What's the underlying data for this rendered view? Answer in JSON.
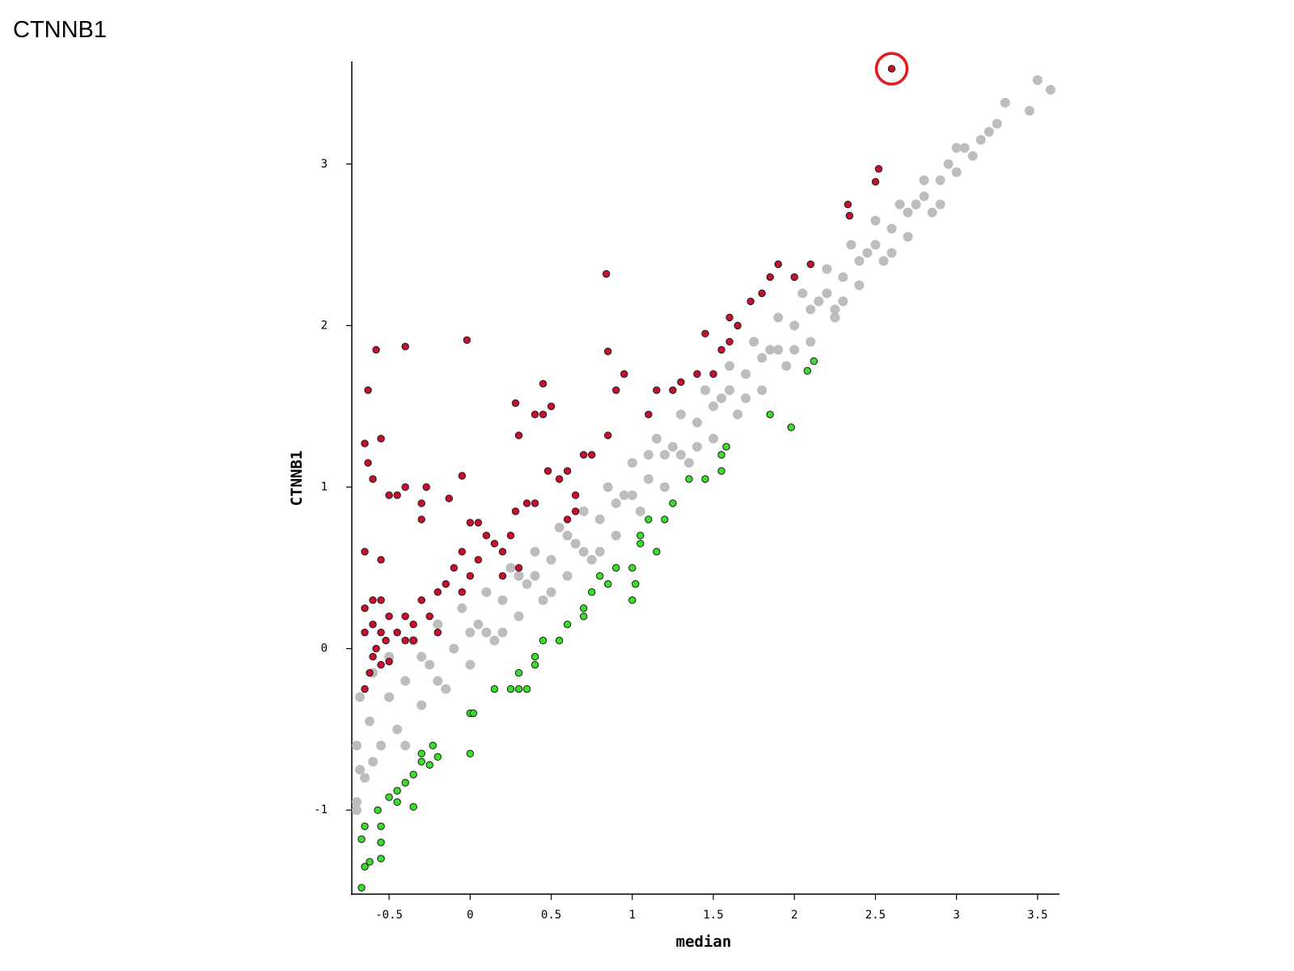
{
  "chart_data": {
    "type": "scatter",
    "title": "CTNNB1",
    "x_label": "median",
    "y_label": "CTNNB1",
    "xlim": [
      -0.73,
      3.63
    ],
    "ylim": [
      -1.52,
      3.63
    ],
    "xticks": [
      -0.5,
      0,
      0.5,
      1,
      1.5,
      2,
      2.5,
      3,
      3.5
    ],
    "yticks": [
      -1,
      0,
      1,
      2,
      3
    ],
    "grid": false,
    "highlight_color": "#e31a1c",
    "series": [
      {
        "color": "#bdbdbd",
        "outline": false,
        "x": [
          -0.7,
          -0.7,
          -0.68,
          -0.65,
          -0.62,
          -0.6,
          -0.55,
          -0.5,
          -0.5,
          -0.45,
          -0.4,
          -0.35,
          -0.3,
          -0.25,
          -0.2,
          -0.15,
          -0.1,
          -0.05,
          0,
          0.05,
          0.1,
          0.15,
          0.2,
          0.25,
          0.3,
          0.35,
          0.4,
          0.45,
          0.5,
          0.55,
          0.6,
          0.65,
          0.7,
          0.75,
          0.8,
          0.85,
          0.9,
          0.95,
          1.0,
          1.05,
          1.1,
          1.15,
          1.2,
          1.25,
          1.3,
          1.35,
          1.4,
          1.45,
          1.5,
          1.55,
          1.6,
          1.65,
          1.7,
          1.75,
          1.8,
          1.85,
          1.9,
          1.95,
          2.0,
          2.05,
          2.1,
          2.15,
          2.2,
          2.25,
          2.3,
          2.35,
          2.4,
          2.45,
          2.5,
          2.55,
          2.6,
          2.65,
          2.7,
          2.75,
          2.8,
          2.85,
          2.9,
          2.95,
          3.0,
          3.05,
          3.1,
          3.15,
          3.2,
          3.25,
          3.3,
          3.45,
          3.5,
          3.58,
          3.0,
          2.25,
          -0.6,
          -0.4,
          -0.3,
          -0.2,
          0.1,
          0.3,
          0.5,
          0.6,
          0.8,
          1.0,
          1.2,
          1.3,
          1.5,
          1.7,
          1.9,
          2.1,
          2.3,
          2.5,
          2.7,
          2.9,
          -0.7,
          -0.68,
          0.0,
          0.2,
          0.4,
          0.7,
          0.9,
          1.1,
          1.4,
          1.6,
          1.8,
          2.0,
          2.2,
          2.4,
          2.6,
          2.8
        ],
        "y": [
          -0.95,
          -0.6,
          -0.3,
          -0.8,
          -0.45,
          -0.15,
          -0.6,
          -0.3,
          -0.05,
          -0.5,
          -0.2,
          0.05,
          -0.35,
          -0.1,
          0.15,
          -0.25,
          0.0,
          0.25,
          -0.1,
          0.15,
          0.35,
          0.05,
          0.3,
          0.5,
          0.2,
          0.4,
          0.6,
          0.3,
          0.55,
          0.75,
          0.45,
          0.65,
          0.85,
          0.55,
          0.8,
          1.0,
          0.7,
          0.95,
          1.15,
          0.85,
          1.05,
          1.3,
          1.0,
          1.25,
          1.45,
          1.15,
          1.4,
          1.6,
          1.3,
          1.55,
          1.75,
          1.45,
          1.7,
          1.9,
          1.6,
          1.85,
          2.05,
          1.75,
          2.0,
          2.2,
          1.9,
          2.15,
          2.35,
          2.05,
          2.3,
          2.5,
          2.25,
          2.45,
          2.65,
          2.4,
          2.6,
          2.75,
          2.55,
          2.75,
          2.9,
          2.7,
          2.9,
          3.0,
          2.95,
          3.1,
          3.05,
          3.15,
          3.2,
          3.25,
          3.38,
          3.33,
          3.52,
          3.46,
          3.1,
          2.1,
          -0.7,
          -0.6,
          -0.05,
          -0.2,
          0.1,
          0.45,
          0.35,
          0.7,
          0.6,
          0.95,
          1.2,
          1.2,
          1.5,
          1.55,
          1.85,
          2.1,
          2.15,
          2.5,
          2.7,
          2.75,
          -1.0,
          -0.75,
          0.1,
          0.1,
          0.45,
          0.6,
          0.9,
          1.2,
          1.25,
          1.6,
          1.8,
          1.85,
          2.2,
          2.4,
          2.45,
          2.8
        ]
      },
      {
        "color": "#c8102e",
        "outline": true,
        "x": [
          -0.65,
          -0.62,
          -0.6,
          -0.58,
          -0.55,
          -0.52,
          -0.5,
          -0.55,
          -0.6,
          -0.65,
          -0.65,
          -0.6,
          -0.55,
          -0.5,
          -0.45,
          -0.4,
          -0.4,
          -0.35,
          -0.3,
          -0.25,
          -0.2,
          -0.2,
          -0.15,
          -0.1,
          -0.05,
          0,
          0.05,
          0.1,
          0.15,
          0.2,
          -0.65,
          -0.55,
          -0.5,
          -0.45,
          -0.3,
          -0.3,
          -0.4,
          -0.27,
          -0.13,
          -0.05,
          0,
          0.05,
          0.28,
          0.35,
          0.3,
          0.4,
          0.45,
          0.5,
          0.45,
          0.28,
          0.48,
          0.6,
          0.7,
          0.75,
          0.85,
          0.9,
          0.95,
          0.85,
          0.84,
          -0.02,
          -0.4,
          -0.58,
          -0.63,
          -0.65,
          -0.55,
          -0.63,
          -0.6,
          1.1,
          1.15,
          1.25,
          1.3,
          1.4,
          1.45,
          1.55,
          1.6,
          1.65,
          1.73,
          1.8,
          1.85,
          1.9,
          2.0,
          2.1,
          1.6,
          1.5,
          2.33,
          2.34,
          2.5,
          2.52,
          0.6,
          0.65,
          0.3,
          0.25,
          0.55,
          0.65,
          0.4,
          0.2,
          -0.05,
          -0.35,
          2.6
        ],
        "y": [
          -0.25,
          -0.15,
          -0.05,
          0.0,
          -0.1,
          0.05,
          -0.08,
          0.1,
          0.15,
          0.1,
          0.25,
          0.3,
          0.3,
          0.2,
          0.1,
          0.05,
          0.2,
          0.15,
          0.3,
          0.2,
          0.1,
          0.35,
          0.4,
          0.5,
          0.6,
          0.45,
          0.55,
          0.7,
          0.65,
          0.6,
          0.6,
          0.55,
          0.95,
          0.95,
          0.8,
          0.9,
          1.0,
          1.0,
          0.93,
          1.07,
          0.78,
          0.78,
          0.85,
          0.9,
          1.32,
          1.45,
          1.45,
          1.5,
          1.64,
          1.52,
          1.1,
          1.1,
          1.2,
          1.2,
          1.32,
          1.6,
          1.7,
          1.84,
          2.32,
          1.91,
          1.87,
          1.85,
          1.6,
          1.27,
          1.3,
          1.15,
          1.05,
          1.45,
          1.6,
          1.6,
          1.65,
          1.7,
          1.95,
          1.85,
          1.9,
          2.0,
          2.15,
          2.2,
          2.3,
          2.38,
          2.3,
          2.38,
          2.05,
          1.7,
          2.75,
          2.68,
          2.89,
          2.97,
          0.8,
          0.85,
          0.5,
          0.7,
          1.05,
          0.95,
          0.9,
          0.45,
          0.35,
          0.05,
          3.59
        ]
      },
      {
        "color": "#3ddc2f",
        "outline": true,
        "x": [
          -0.67,
          -0.65,
          -0.62,
          -0.55,
          -0.67,
          -0.65,
          -0.55,
          -0.55,
          -0.57,
          -0.5,
          -0.45,
          -0.4,
          -0.35,
          -0.3,
          -0.25,
          -0.2,
          -0.23,
          0,
          -0.3,
          -0.35,
          -0.45,
          0,
          0.02,
          0.15,
          0.25,
          0.3,
          0.35,
          0.3,
          0.4,
          0.4,
          0.45,
          0.55,
          0.6,
          0.7,
          0.7,
          0.75,
          0.8,
          0.85,
          0.9,
          1.0,
          1.02,
          1.0,
          1.05,
          1.05,
          1.1,
          1.15,
          1.2,
          1.25,
          1.35,
          1.45,
          1.55,
          1.55,
          1.58,
          1.85,
          1.98,
          2.08,
          2.12
        ],
        "y": [
          -1.48,
          -1.35,
          -1.32,
          -1.3,
          -1.18,
          -1.1,
          -1.2,
          -1.1,
          -1.0,
          -0.92,
          -0.95,
          -0.83,
          -0.78,
          -0.7,
          -0.72,
          -0.67,
          -0.6,
          -0.65,
          -0.65,
          -0.98,
          -0.88,
          -0.4,
          -0.4,
          -0.25,
          -0.25,
          -0.25,
          -0.25,
          -0.15,
          -0.1,
          -0.05,
          0.05,
          0.05,
          0.15,
          0.2,
          0.25,
          0.35,
          0.45,
          0.4,
          0.5,
          0.3,
          0.4,
          0.5,
          0.65,
          0.7,
          0.8,
          0.6,
          0.8,
          0.9,
          1.05,
          1.05,
          1.1,
          1.2,
          1.25,
          1.45,
          1.37,
          1.72,
          1.78
        ]
      }
    ]
  }
}
